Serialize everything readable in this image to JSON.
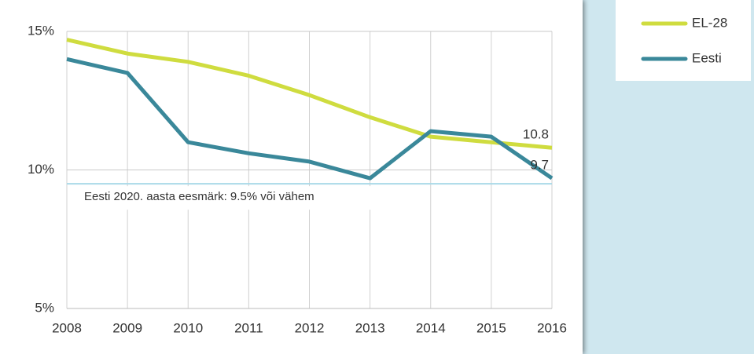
{
  "chart_data": {
    "type": "line",
    "categories": [
      "2008",
      "2009",
      "2010",
      "2011",
      "2012",
      "2013",
      "2014",
      "2015",
      "2016"
    ],
    "series": [
      {
        "name": "EL-28",
        "color": "#cfdc3f",
        "values": [
          14.7,
          14.2,
          13.9,
          13.4,
          12.7,
          11.9,
          11.2,
          11.0,
          10.8
        ]
      },
      {
        "name": "Eesti",
        "color": "#3a889a",
        "values": [
          14.0,
          13.5,
          11.0,
          10.6,
          10.3,
          9.7,
          11.4,
          11.2,
          9.7
        ]
      }
    ],
    "ylim": [
      5,
      15
    ],
    "yticks": [
      {
        "value": 5,
        "label": "5%"
      },
      {
        "value": 10,
        "label": "10%"
      },
      {
        "value": 15,
        "label": "15%"
      }
    ],
    "reference_line": {
      "value": 9.5,
      "label": "Eesti  2020. aasta eesmärk: 9.5% või vähem",
      "color": "#a9d9e8"
    },
    "grid": true,
    "legend": "right"
  }
}
